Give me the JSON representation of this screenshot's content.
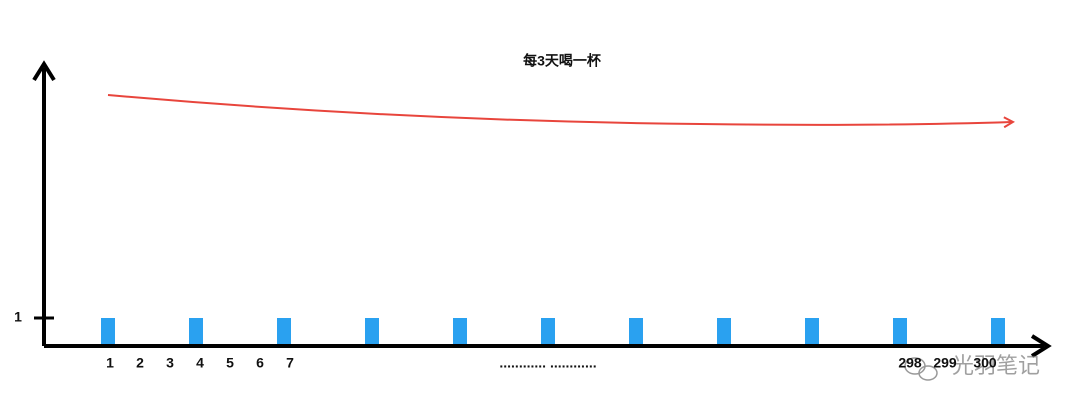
{
  "chart_data": {
    "type": "bar",
    "title": "每3天喝一杯",
    "values": [
      1,
      1,
      1,
      1,
      1,
      1,
      1,
      1,
      1,
      1,
      1
    ],
    "color": "#2aa1f0",
    "ylim": [
      0,
      10
    ],
    "yticks": [
      1
    ],
    "x_labels": [
      "1",
      "2",
      "3",
      "4",
      "5",
      "6",
      "7",
      "............ ............",
      "298",
      "299",
      "300"
    ]
  },
  "watermark": "光羽笔记"
}
